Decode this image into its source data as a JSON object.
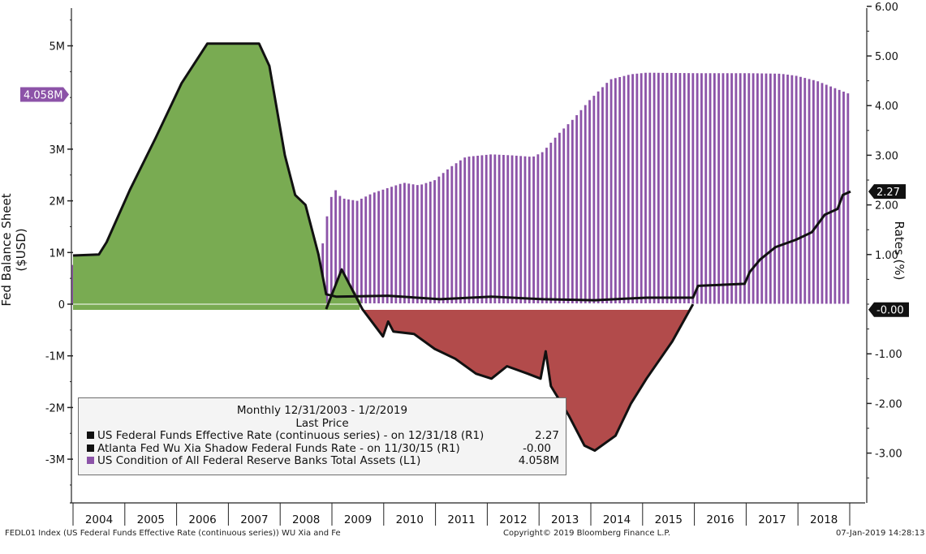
{
  "colors": {
    "purple": "#8c53a8",
    "green": "#79ab52",
    "red": "#b24b4b",
    "line": "#111111",
    "label_box_purple": "#8c53a8"
  },
  "axes": {
    "left_label": "Fed Balance Sheet ($USD)",
    "right_label": "Rates (%)",
    "left_ticks": [
      "5M",
      "3M",
      "2M",
      "1M",
      "0",
      "-1M",
      "-2M",
      "-3M"
    ],
    "right_ticks": [
      "6.00",
      "5.00",
      "4.00",
      "3.00",
      "2.00",
      "1.00",
      "-1.00",
      "-2.00",
      "-3.00"
    ],
    "years": [
      "2004",
      "2005",
      "2006",
      "2007",
      "2008",
      "2009",
      "2010",
      "2011",
      "2012",
      "2013",
      "2014",
      "2015",
      "2016",
      "2017",
      "2018"
    ]
  },
  "value_labels": {
    "assets_last": "4.058M",
    "funds_last": "2.27",
    "shadow_last": "-0.00"
  },
  "legend": {
    "header1": "Monthly 12/31/2003 - 1/2/2019",
    "header2": "Last Price",
    "rows": [
      {
        "label": "US Federal Funds Effective Rate (continuous series) -  on 12/31/18  (R1)",
        "value": "2.27",
        "color": "#111111"
      },
      {
        "label": "Atlanta Fed Wu Xia Shadow Federal Funds Rate -  on 11/30/15  (R1)",
        "value": "-0.00",
        "color": "#111111"
      },
      {
        "label": "US Condition of All Federal Reserve Banks Total Assets  (L1)",
        "value": "4.058M",
        "color": "#8c53a8"
      }
    ]
  },
  "footer": {
    "left": "FEDL01 Index (US Federal Funds Effective Rate (continuous series)) WU Xia and Fe",
    "center": "Copyright© 2019 Bloomberg Finance L.P.",
    "right": "07-Jan-2019 14:28:13"
  },
  "chart_data": {
    "type": "bar+line",
    "title": "",
    "left_axis": {
      "label": "Fed Balance Sheet ($USD)",
      "range": [
        -3.5,
        5.75
      ],
      "unit": "millions USD (M)"
    },
    "right_axis": {
      "label": "Rates (%)",
      "range": [
        -3.5,
        6.0
      ]
    },
    "x_range": [
      "2003-12",
      "2018-12"
    ],
    "series": [
      {
        "name": "US Condition of All Federal Reserve Banks Total Assets",
        "axis": "L1",
        "type": "bar",
        "last": 4.058,
        "points": [
          [
            2003.9,
            0.76
          ],
          [
            2005.0,
            0.79
          ],
          [
            2006.0,
            0.83
          ],
          [
            2007.0,
            0.87
          ],
          [
            2008.0,
            0.9
          ],
          [
            2008.7,
            0.93
          ],
          [
            2008.75,
            1.3
          ],
          [
            2008.85,
            1.9
          ],
          [
            2008.95,
            2.25
          ],
          [
            2009.1,
            2.05
          ],
          [
            2009.4,
            2.0
          ],
          [
            2009.7,
            2.15
          ],
          [
            2010.0,
            2.25
          ],
          [
            2010.3,
            2.35
          ],
          [
            2010.6,
            2.3
          ],
          [
            2010.9,
            2.4
          ],
          [
            2011.2,
            2.65
          ],
          [
            2011.5,
            2.85
          ],
          [
            2012.0,
            2.9
          ],
          [
            2012.4,
            2.88
          ],
          [
            2012.8,
            2.85
          ],
          [
            2013.0,
            2.95
          ],
          [
            2013.3,
            3.3
          ],
          [
            2013.6,
            3.6
          ],
          [
            2013.9,
            3.95
          ],
          [
            2014.3,
            4.35
          ],
          [
            2014.7,
            4.45
          ],
          [
            2015.0,
            4.48
          ],
          [
            2016.0,
            4.47
          ],
          [
            2017.0,
            4.47
          ],
          [
            2017.6,
            4.46
          ],
          [
            2017.9,
            4.42
          ],
          [
            2018.3,
            4.32
          ],
          [
            2018.65,
            4.18
          ],
          [
            2018.95,
            4.06
          ]
        ]
      },
      {
        "name": "US Federal Funds Effective Rate (continuous series)",
        "axis": "R1",
        "type": "line",
        "last": 2.27,
        "points": [
          [
            2003.9,
            0.98
          ],
          [
            2004.4,
            1.0
          ],
          [
            2004.55,
            1.25
          ],
          [
            2005.0,
            2.3
          ],
          [
            2005.5,
            3.35
          ],
          [
            2006.0,
            4.45
          ],
          [
            2006.5,
            5.25
          ],
          [
            2007.0,
            5.25
          ],
          [
            2007.5,
            5.25
          ],
          [
            2007.7,
            4.8
          ],
          [
            2008.0,
            3.0
          ],
          [
            2008.2,
            2.2
          ],
          [
            2008.4,
            2.0
          ],
          [
            2008.65,
            1.0
          ],
          [
            2008.8,
            0.2
          ],
          [
            2009.0,
            0.15
          ],
          [
            2010.0,
            0.17
          ],
          [
            2011.0,
            0.1
          ],
          [
            2012.0,
            0.15
          ],
          [
            2013.0,
            0.1
          ],
          [
            2014.0,
            0.08
          ],
          [
            2015.0,
            0.13
          ],
          [
            2015.9,
            0.13
          ],
          [
            2016.0,
            0.37
          ],
          [
            2016.9,
            0.41
          ],
          [
            2017.0,
            0.65
          ],
          [
            2017.2,
            0.9
          ],
          [
            2017.5,
            1.15
          ],
          [
            2017.9,
            1.3
          ],
          [
            2018.2,
            1.45
          ],
          [
            2018.45,
            1.8
          ],
          [
            2018.7,
            1.92
          ],
          [
            2018.8,
            2.2
          ],
          [
            2018.95,
            2.27
          ]
        ]
      },
      {
        "name": "Atlanta Fed Wu Xia Shadow Federal Funds Rate",
        "axis": "R1",
        "type": "line",
        "shading": "green above zero, red below zero",
        "last": -0.0,
        "points": [
          [
            2008.8,
            -0.1
          ],
          [
            2009.1,
            0.7
          ],
          [
            2009.5,
            -0.1
          ],
          [
            2009.9,
            -0.65
          ],
          [
            2010.0,
            -0.35
          ],
          [
            2010.1,
            -0.55
          ],
          [
            2010.5,
            -0.6
          ],
          [
            2010.9,
            -0.9
          ],
          [
            2011.3,
            -1.1
          ],
          [
            2011.7,
            -1.4
          ],
          [
            2012.0,
            -1.5
          ],
          [
            2012.3,
            -1.25
          ],
          [
            2012.7,
            -1.4
          ],
          [
            2012.95,
            -1.5
          ],
          [
            2013.05,
            -0.95
          ],
          [
            2013.15,
            -1.65
          ],
          [
            2013.5,
            -2.25
          ],
          [
            2013.8,
            -2.85
          ],
          [
            2014.0,
            -2.95
          ],
          [
            2014.4,
            -2.65
          ],
          [
            2014.7,
            -2.0
          ],
          [
            2015.0,
            -1.5
          ],
          [
            2015.5,
            -0.75
          ],
          [
            2015.9,
            -0.0
          ]
        ]
      }
    ]
  }
}
